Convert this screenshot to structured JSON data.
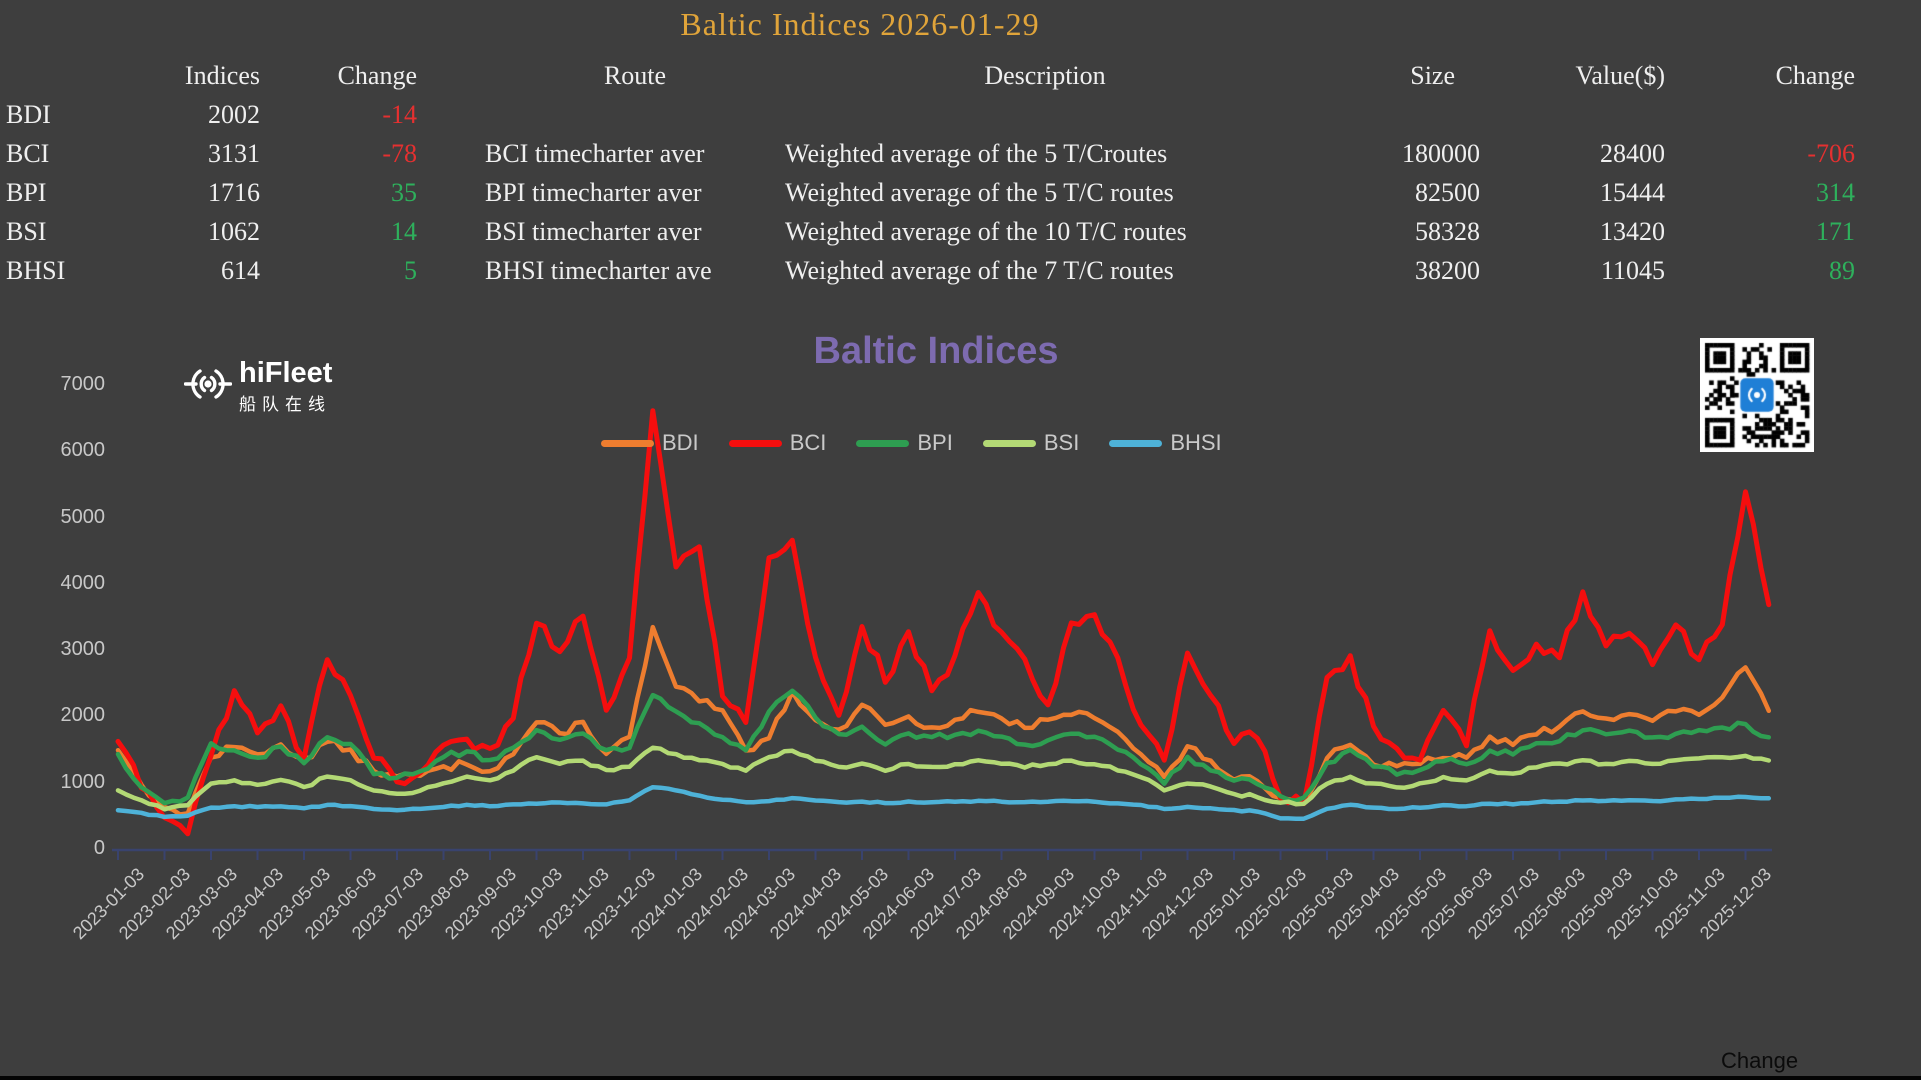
{
  "page": {
    "title": "Baltic Indices 2026-01-29",
    "bottom_right_label": "Change",
    "background_color": "#3E3E3E",
    "title_color": "#E0A43A",
    "negative_color": "#E53030",
    "positive_color": "#2EB05C"
  },
  "logo": {
    "name": "hiFleet",
    "subtitle": "船队在线",
    "icon": "radar-broadcast-icon"
  },
  "qr": {
    "label": "qr-code",
    "logo_color": "#1F7FD6"
  },
  "table": {
    "headers": [
      "Indices",
      "Change",
      "Route",
      "Description",
      "Size",
      "Value($)",
      "Change"
    ],
    "rows": [
      {
        "name": "BDI",
        "index_value": "2002",
        "change": "-14",
        "route": "",
        "description": "",
        "size": "",
        "value": "",
        "value_change": ""
      },
      {
        "name": "BCI",
        "index_value": "3131",
        "change": "-78",
        "route": "BCI timecharter aver",
        "description": "Weighted average of the 5 T/Croutes",
        "size": "180000",
        "value": "28400",
        "value_change": "-706"
      },
      {
        "name": "BPI",
        "index_value": "1716",
        "change": "35",
        "route": "BPI timecharter aver",
        "description": "Weighted average of the 5 T/C routes",
        "size": "82500",
        "value": "15444",
        "value_change": "314"
      },
      {
        "name": "BSI",
        "index_value": "1062",
        "change": "14",
        "route": "BSI timecharter aver",
        "description": "Weighted average of the 10 T/C routes",
        "size": "58328",
        "value": "13420",
        "value_change": "171"
      },
      {
        "name": "BHSI",
        "index_value": "614",
        "change": "5",
        "route": "BHSI timecharter ave",
        "description": "Weighted average of the 7 T/C routes",
        "size": "38200",
        "value": "11045",
        "value_change": "89"
      }
    ]
  },
  "chart_data": {
    "type": "line",
    "title": "Baltic Indices",
    "title_color": "#7D6BB0",
    "xlabel": "",
    "ylabel": "",
    "ylim": [
      0,
      7000
    ],
    "ytick_step": 1000,
    "grid": false,
    "legend_position": "top-center",
    "axis_color": "#39436E",
    "tick_label_color": "#C8C8C8",
    "x_tick_labels": [
      "2023-01-03",
      "2023-02-03",
      "2023-03-03",
      "2023-04-03",
      "2023-05-03",
      "2023-06-03",
      "2023-07-03",
      "2023-08-03",
      "2023-09-03",
      "2023-10-03",
      "2023-11-03",
      "2023-12-03",
      "2024-01-03",
      "2024-02-03",
      "2024-03-03",
      "2024-04-03",
      "2024-05-03",
      "2024-06-03",
      "2024-07-03",
      "2024-08-03",
      "2024-09-03",
      "2024-10-03",
      "2024-11-03",
      "2024-12-03",
      "2025-01-03",
      "2025-02-03",
      "2025-03-03",
      "2025-04-03",
      "2025-05-03",
      "2025-06-03",
      "2025-07-03",
      "2025-08-03",
      "2025-09-03",
      "2025-10-03",
      "2025-11-03",
      "2025-12-03"
    ],
    "x_note": "series values are semi-monthly samples starting 2023-01-03 (two per month interval)",
    "series": [
      {
        "name": "BDI",
        "color": "#EE7D2F",
        "line_width": 4.5,
        "jitter": 70,
        "values": [
          1515,
          1000,
          630,
          560,
          1400,
          1550,
          1450,
          1580,
          1380,
          1630,
          1500,
          1200,
          1100,
          1120,
          1250,
          1300,
          1200,
          1450,
          1930,
          1750,
          1930,
          1450,
          1700,
          3350,
          2450,
          2250,
          2090,
          1500,
          1700,
          2400,
          1950,
          1800,
          2200,
          1900,
          2000,
          1850,
          1950,
          2100,
          1980,
          1850,
          1950,
          2050,
          2000,
          1800,
          1450,
          1100,
          1550,
          1350,
          1050,
          1050,
          790,
          715,
          1400,
          1600,
          1300,
          1250,
          1300,
          1400,
          1380,
          1700,
          1600,
          1750,
          1850,
          2100,
          2000,
          2050,
          1950,
          2100,
          2050,
          2300,
          2750,
          2100
        ]
      },
      {
        "name": "BCI",
        "color": "#F50E0E",
        "line_width": 5,
        "jitter": 130,
        "values": [
          1650,
          950,
          500,
          260,
          1450,
          2400,
          1750,
          2150,
          1400,
          2900,
          2350,
          1400,
          1000,
          1150,
          1600,
          1700,
          1500,
          2000,
          3450,
          3000,
          3550,
          2100,
          2900,
          6600,
          4300,
          4600,
          2300,
          1950,
          4400,
          4650,
          2900,
          2050,
          3400,
          2550,
          3300,
          2400,
          2900,
          3900,
          3300,
          2900,
          2200,
          3400,
          3550,
          2900,
          1900,
          1350,
          2950,
          2300,
          1600,
          1700,
          800,
          700,
          2600,
          2900,
          1900,
          1500,
          1350,
          2100,
          1600,
          3300,
          2700,
          3100,
          2900,
          3900,
          3100,
          3300,
          2800,
          3400,
          2900,
          3400,
          5400,
          3700
        ]
      },
      {
        "name": "BPI",
        "color": "#2E9E51",
        "line_width": 4.5,
        "jitter": 55,
        "values": [
          1450,
          950,
          700,
          800,
          1600,
          1500,
          1400,
          1550,
          1300,
          1700,
          1600,
          1150,
          1100,
          1200,
          1400,
          1500,
          1350,
          1550,
          1800,
          1650,
          1750,
          1500,
          1550,
          2350,
          2100,
          1900,
          1700,
          1500,
          2100,
          2400,
          2000,
          1750,
          1850,
          1600,
          1750,
          1700,
          1750,
          1800,
          1700,
          1600,
          1650,
          1750,
          1700,
          1500,
          1300,
          1000,
          1400,
          1200,
          1050,
          1000,
          820,
          780,
          1300,
          1500,
          1250,
          1150,
          1200,
          1350,
          1300,
          1500,
          1450,
          1600,
          1650,
          1800,
          1750,
          1800,
          1700,
          1750,
          1800,
          1850,
          1900,
          1700
        ]
      },
      {
        "name": "BSI",
        "color": "#B3D975",
        "line_width": 4.5,
        "jitter": 30,
        "values": [
          900,
          750,
          620,
          680,
          1000,
          1050,
          980,
          1050,
          950,
          1100,
          1050,
          900,
          850,
          900,
          1000,
          1100,
          1050,
          1200,
          1400,
          1300,
          1350,
          1200,
          1250,
          1550,
          1450,
          1350,
          1300,
          1200,
          1400,
          1500,
          1350,
          1250,
          1300,
          1200,
          1300,
          1250,
          1300,
          1350,
          1300,
          1250,
          1300,
          1350,
          1300,
          1200,
          1100,
          900,
          1000,
          950,
          850,
          800,
          720,
          700,
          1000,
          1100,
          1000,
          950,
          1000,
          1100,
          1050,
          1200,
          1150,
          1250,
          1300,
          1350,
          1300,
          1350,
          1300,
          1350,
          1380,
          1400,
          1420,
          1350
        ]
      },
      {
        "name": "BHSI",
        "color": "#4EB2D8",
        "line_width": 4.5,
        "jitter": 12,
        "values": [
          600,
          560,
          500,
          520,
          640,
          660,
          650,
          660,
          630,
          680,
          660,
          620,
          600,
          620,
          650,
          680,
          660,
          690,
          700,
          720,
          700,
          690,
          750,
          950,
          900,
          820,
          760,
          720,
          740,
          780,
          750,
          720,
          730,
          710,
          730,
          720,
          730,
          740,
          730,
          720,
          730,
          740,
          730,
          700,
          680,
          620,
          650,
          630,
          600,
          580,
          480,
          470,
          620,
          680,
          640,
          620,
          640,
          680,
          660,
          700,
          690,
          720,
          730,
          750,
          740,
          750,
          740,
          760,
          770,
          790,
          800,
          780
        ]
      }
    ]
  }
}
